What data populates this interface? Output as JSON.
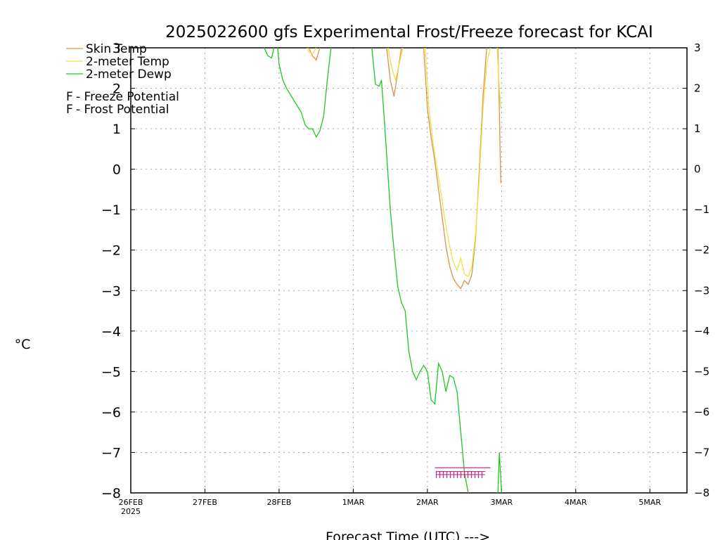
{
  "chart_data": {
    "type": "line",
    "title": "2025022600 gfs Experimental Frost/Freeze forecast for KCAI",
    "ylabel": "°C",
    "xlabel": "Forecast Time (UTC) --->",
    "ylim": [
      -8,
      3
    ],
    "xlim": [
      0,
      7.5
    ],
    "x_units": "days since 26FEB2025 00UTC",
    "yticks": [
      3,
      2,
      1,
      0,
      -1,
      -2,
      -3,
      -4,
      -5,
      -6,
      -7,
      -8
    ],
    "xticks": [
      {
        "x": 0,
        "label": "26FEB",
        "sublabel": "2025"
      },
      {
        "x": 1,
        "label": "27FEB"
      },
      {
        "x": 2,
        "label": "28FEB"
      },
      {
        "x": 3,
        "label": "1MAR"
      },
      {
        "x": 4,
        "label": "2MAR"
      },
      {
        "x": 5,
        "label": "3MAR"
      },
      {
        "x": 6,
        "label": "4MAR"
      },
      {
        "x": 7,
        "label": "5MAR"
      }
    ],
    "grid": true,
    "legend_position": "top-left",
    "series": [
      {
        "name": "Skin Temp",
        "color": "#e0904a",
        "segments": [
          [
            [
              2.4,
              3.0
            ],
            [
              2.45,
              2.8
            ],
            [
              2.5,
              2.7
            ],
            [
              2.55,
              3.0
            ]
          ],
          [
            [
              3.45,
              3.0
            ],
            [
              3.5,
              2.2
            ],
            [
              3.55,
              1.8
            ],
            [
              3.6,
              2.4
            ],
            [
              3.65,
              3.0
            ]
          ],
          [
            [
              3.95,
              3.0
            ],
            [
              4.0,
              1.5
            ],
            [
              4.05,
              0.8
            ],
            [
              4.1,
              0.2
            ],
            [
              4.15,
              -0.5
            ],
            [
              4.2,
              -1.2
            ],
            [
              4.25,
              -1.9
            ],
            [
              4.3,
              -2.4
            ],
            [
              4.35,
              -2.7
            ],
            [
              4.4,
              -2.85
            ],
            [
              4.45,
              -2.95
            ],
            [
              4.5,
              -2.75
            ],
            [
              4.55,
              -2.85
            ],
            [
              4.6,
              -2.6
            ],
            [
              4.65,
              -1.7
            ],
            [
              4.7,
              0.0
            ],
            [
              4.75,
              1.8
            ],
            [
              4.8,
              3.0
            ]
          ],
          [
            [
              4.95,
              3.0
            ],
            [
              4.97,
              1.5
            ],
            [
              4.98,
              0.5
            ],
            [
              4.99,
              -0.35
            ]
          ]
        ]
      },
      {
        "name": "2-meter Temp",
        "color": "#ece24a",
        "segments": [
          [
            [
              2.38,
              3.0
            ],
            [
              2.4,
              2.9
            ],
            [
              2.45,
              2.85
            ],
            [
              2.5,
              3.0
            ]
          ],
          [
            [
              3.47,
              3.0
            ],
            [
              3.52,
              2.5
            ],
            [
              3.57,
              2.2
            ],
            [
              3.62,
              2.6
            ],
            [
              3.67,
              3.0
            ]
          ],
          [
            [
              3.97,
              3.0
            ],
            [
              4.02,
              1.5
            ],
            [
              4.08,
              0.6
            ],
            [
              4.15,
              -0.2
            ],
            [
              4.2,
              -0.8
            ],
            [
              4.25,
              -1.4
            ],
            [
              4.3,
              -1.9
            ],
            [
              4.35,
              -2.3
            ],
            [
              4.4,
              -2.5
            ],
            [
              4.45,
              -2.2
            ],
            [
              4.5,
              -2.6
            ],
            [
              4.55,
              -2.65
            ],
            [
              4.6,
              -2.4
            ],
            [
              4.65,
              -1.6
            ],
            [
              4.7,
              -0.2
            ],
            [
              4.75,
              1.5
            ],
            [
              4.8,
              2.6
            ],
            [
              4.85,
              3.0
            ]
          ],
          [
            [
              4.94,
              3.0
            ],
            [
              4.97,
              2.0
            ],
            [
              4.99,
              1.5
            ]
          ]
        ]
      },
      {
        "name": "2-meter Dewp",
        "color": "#1ec81e",
        "segments": [
          [
            [
              1.8,
              3.0
            ],
            [
              1.85,
              2.8
            ],
            [
              1.9,
              2.75
            ],
            [
              1.93,
              3.0
            ]
          ],
          [
            [
              1.98,
              3.0
            ],
            [
              2.0,
              2.6
            ],
            [
              2.05,
              2.2
            ],
            [
              2.1,
              2.0
            ],
            [
              2.2,
              1.7
            ],
            [
              2.3,
              1.4
            ],
            [
              2.35,
              1.1
            ],
            [
              2.4,
              1.0
            ],
            [
              2.45,
              1.0
            ],
            [
              2.5,
              0.8
            ],
            [
              2.55,
              0.95
            ],
            [
              2.6,
              1.3
            ],
            [
              2.65,
              2.2
            ],
            [
              2.7,
              3.0
            ]
          ],
          [
            [
              3.25,
              3.0
            ],
            [
              3.3,
              2.1
            ],
            [
              3.35,
              2.05
            ],
            [
              3.38,
              2.2
            ],
            [
              3.42,
              1.2
            ],
            [
              3.5,
              -1.0
            ],
            [
              3.55,
              -2.0
            ],
            [
              3.6,
              -2.9
            ],
            [
              3.65,
              -3.3
            ],
            [
              3.7,
              -3.5
            ],
            [
              3.75,
              -4.5
            ],
            [
              3.8,
              -5.0
            ],
            [
              3.85,
              -5.2
            ],
            [
              3.9,
              -5.0
            ],
            [
              3.95,
              -4.85
            ],
            [
              4.0,
              -5.0
            ],
            [
              4.05,
              -5.7
            ],
            [
              4.1,
              -5.8
            ],
            [
              4.15,
              -4.8
            ],
            [
              4.2,
              -5.0
            ],
            [
              4.25,
              -5.5
            ],
            [
              4.3,
              -5.1
            ],
            [
              4.35,
              -5.15
            ],
            [
              4.4,
              -5.5
            ],
            [
              4.45,
              -6.5
            ],
            [
              4.5,
              -7.5
            ],
            [
              4.55,
              -8.0
            ]
          ],
          [
            [
              4.95,
              -8.0
            ],
            [
              4.97,
              -7.0
            ],
            [
              5.0,
              -8.0
            ]
          ]
        ]
      }
    ],
    "potential_markers": {
      "color": "#c0308a",
      "symbol": "F",
      "y_level": -7.5,
      "x_range": [
        4.1,
        4.85
      ]
    },
    "legend_extra": [
      {
        "symbol": "F",
        "label": " - Freeze Potential",
        "color": "#c0308a"
      },
      {
        "symbol": "F",
        "label": " - Frost Potential",
        "color": "#3050d8"
      }
    ]
  }
}
